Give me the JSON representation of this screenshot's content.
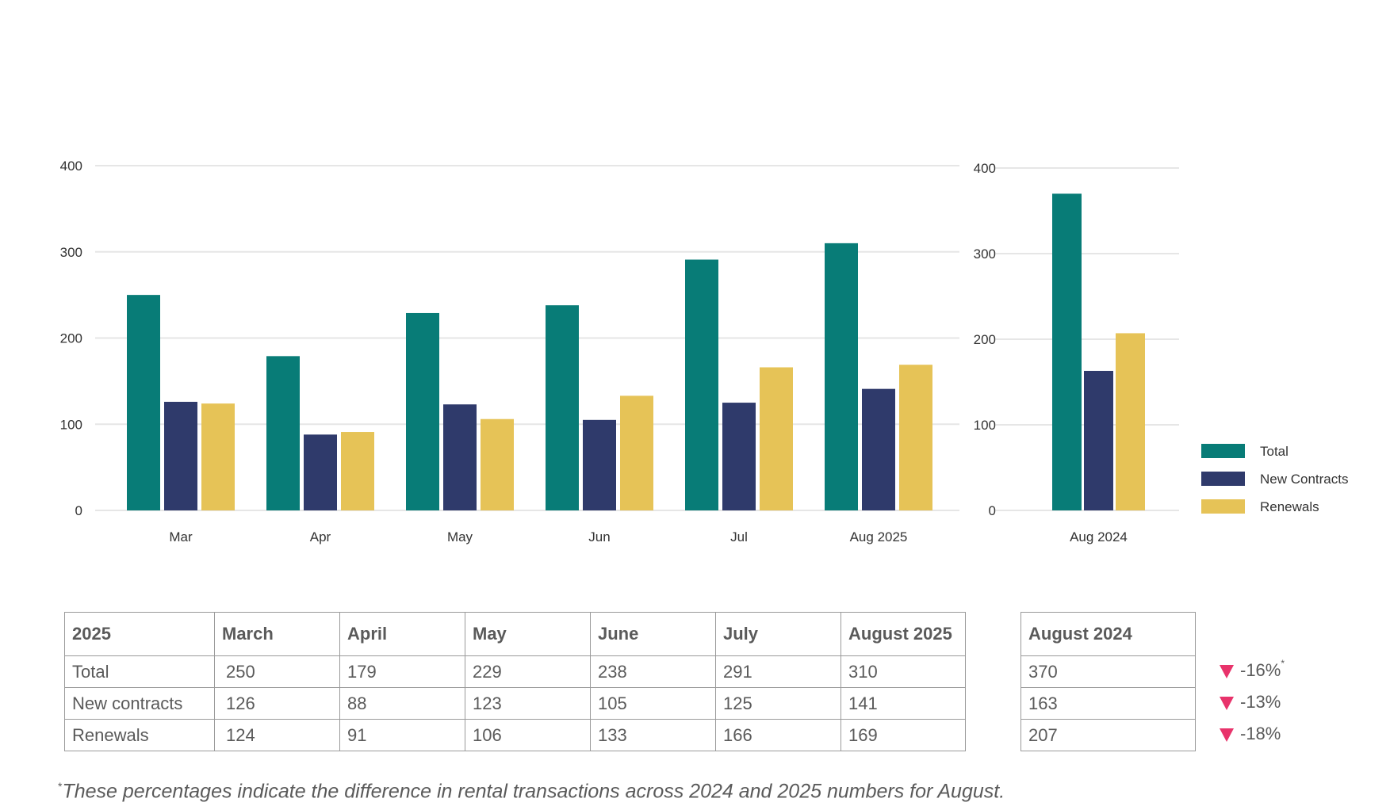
{
  "chart_data": [
    {
      "type": "bar",
      "categories": [
        "Mar",
        "Apr",
        "May",
        "Jun",
        "Jul",
        "Aug 2025"
      ],
      "series": [
        {
          "name": "Total",
          "values": [
            250,
            179,
            229,
            238,
            291,
            310
          ]
        },
        {
          "name": "New Contracts",
          "values": [
            126,
            88,
            123,
            105,
            125,
            141
          ]
        },
        {
          "name": "Renewals",
          "values": [
            124,
            91,
            106,
            133,
            166,
            169
          ]
        }
      ],
      "ylim": [
        0,
        400
      ],
      "yticks": [
        0,
        100,
        200,
        300,
        400
      ],
      "grid": true,
      "legend": "none"
    },
    {
      "type": "bar",
      "categories": [
        "Aug 2024"
      ],
      "series": [
        {
          "name": "Total",
          "values": [
            370
          ]
        },
        {
          "name": "New Contracts",
          "values": [
            163
          ]
        },
        {
          "name": "Renewals",
          "values": [
            207
          ]
        }
      ],
      "ylim": [
        0,
        400
      ],
      "yticks": [
        0,
        100,
        200,
        300,
        400
      ],
      "grid": true,
      "legend": "right"
    }
  ],
  "colors": {
    "Total": "#087c77",
    "New Contracts": "#2f3a6b",
    "Renewals": "#e6c357",
    "grid": "#e6e6e6",
    "decrease": "#e8336b"
  },
  "legend": {
    "items": [
      "Total",
      "New Contracts",
      "Renewals"
    ]
  },
  "table_2025": {
    "headers": [
      "2025",
      "March",
      "April",
      "May",
      "June",
      "July",
      "August 2025"
    ],
    "rows": [
      [
        "Total",
        "250",
        "179",
        "229",
        "238",
        "291",
        "310"
      ],
      [
        "New contracts",
        "126",
        "88",
        "123",
        "105",
        "125",
        "141"
      ],
      [
        "Renewals",
        "124",
        "91",
        "106",
        "133",
        "166",
        "169"
      ]
    ]
  },
  "table_2024": {
    "header": "August 2024",
    "values": [
      "370",
      "163",
      "207"
    ]
  },
  "changes": [
    {
      "value": "-16%",
      "mark": "*"
    },
    {
      "value": "-13%",
      "mark": ""
    },
    {
      "value": "-18%",
      "mark": ""
    }
  ],
  "footnote": {
    "mark": "*",
    "text": "These percentages indicate the difference in rental transactions across 2024 and 2025 numbers for August."
  }
}
